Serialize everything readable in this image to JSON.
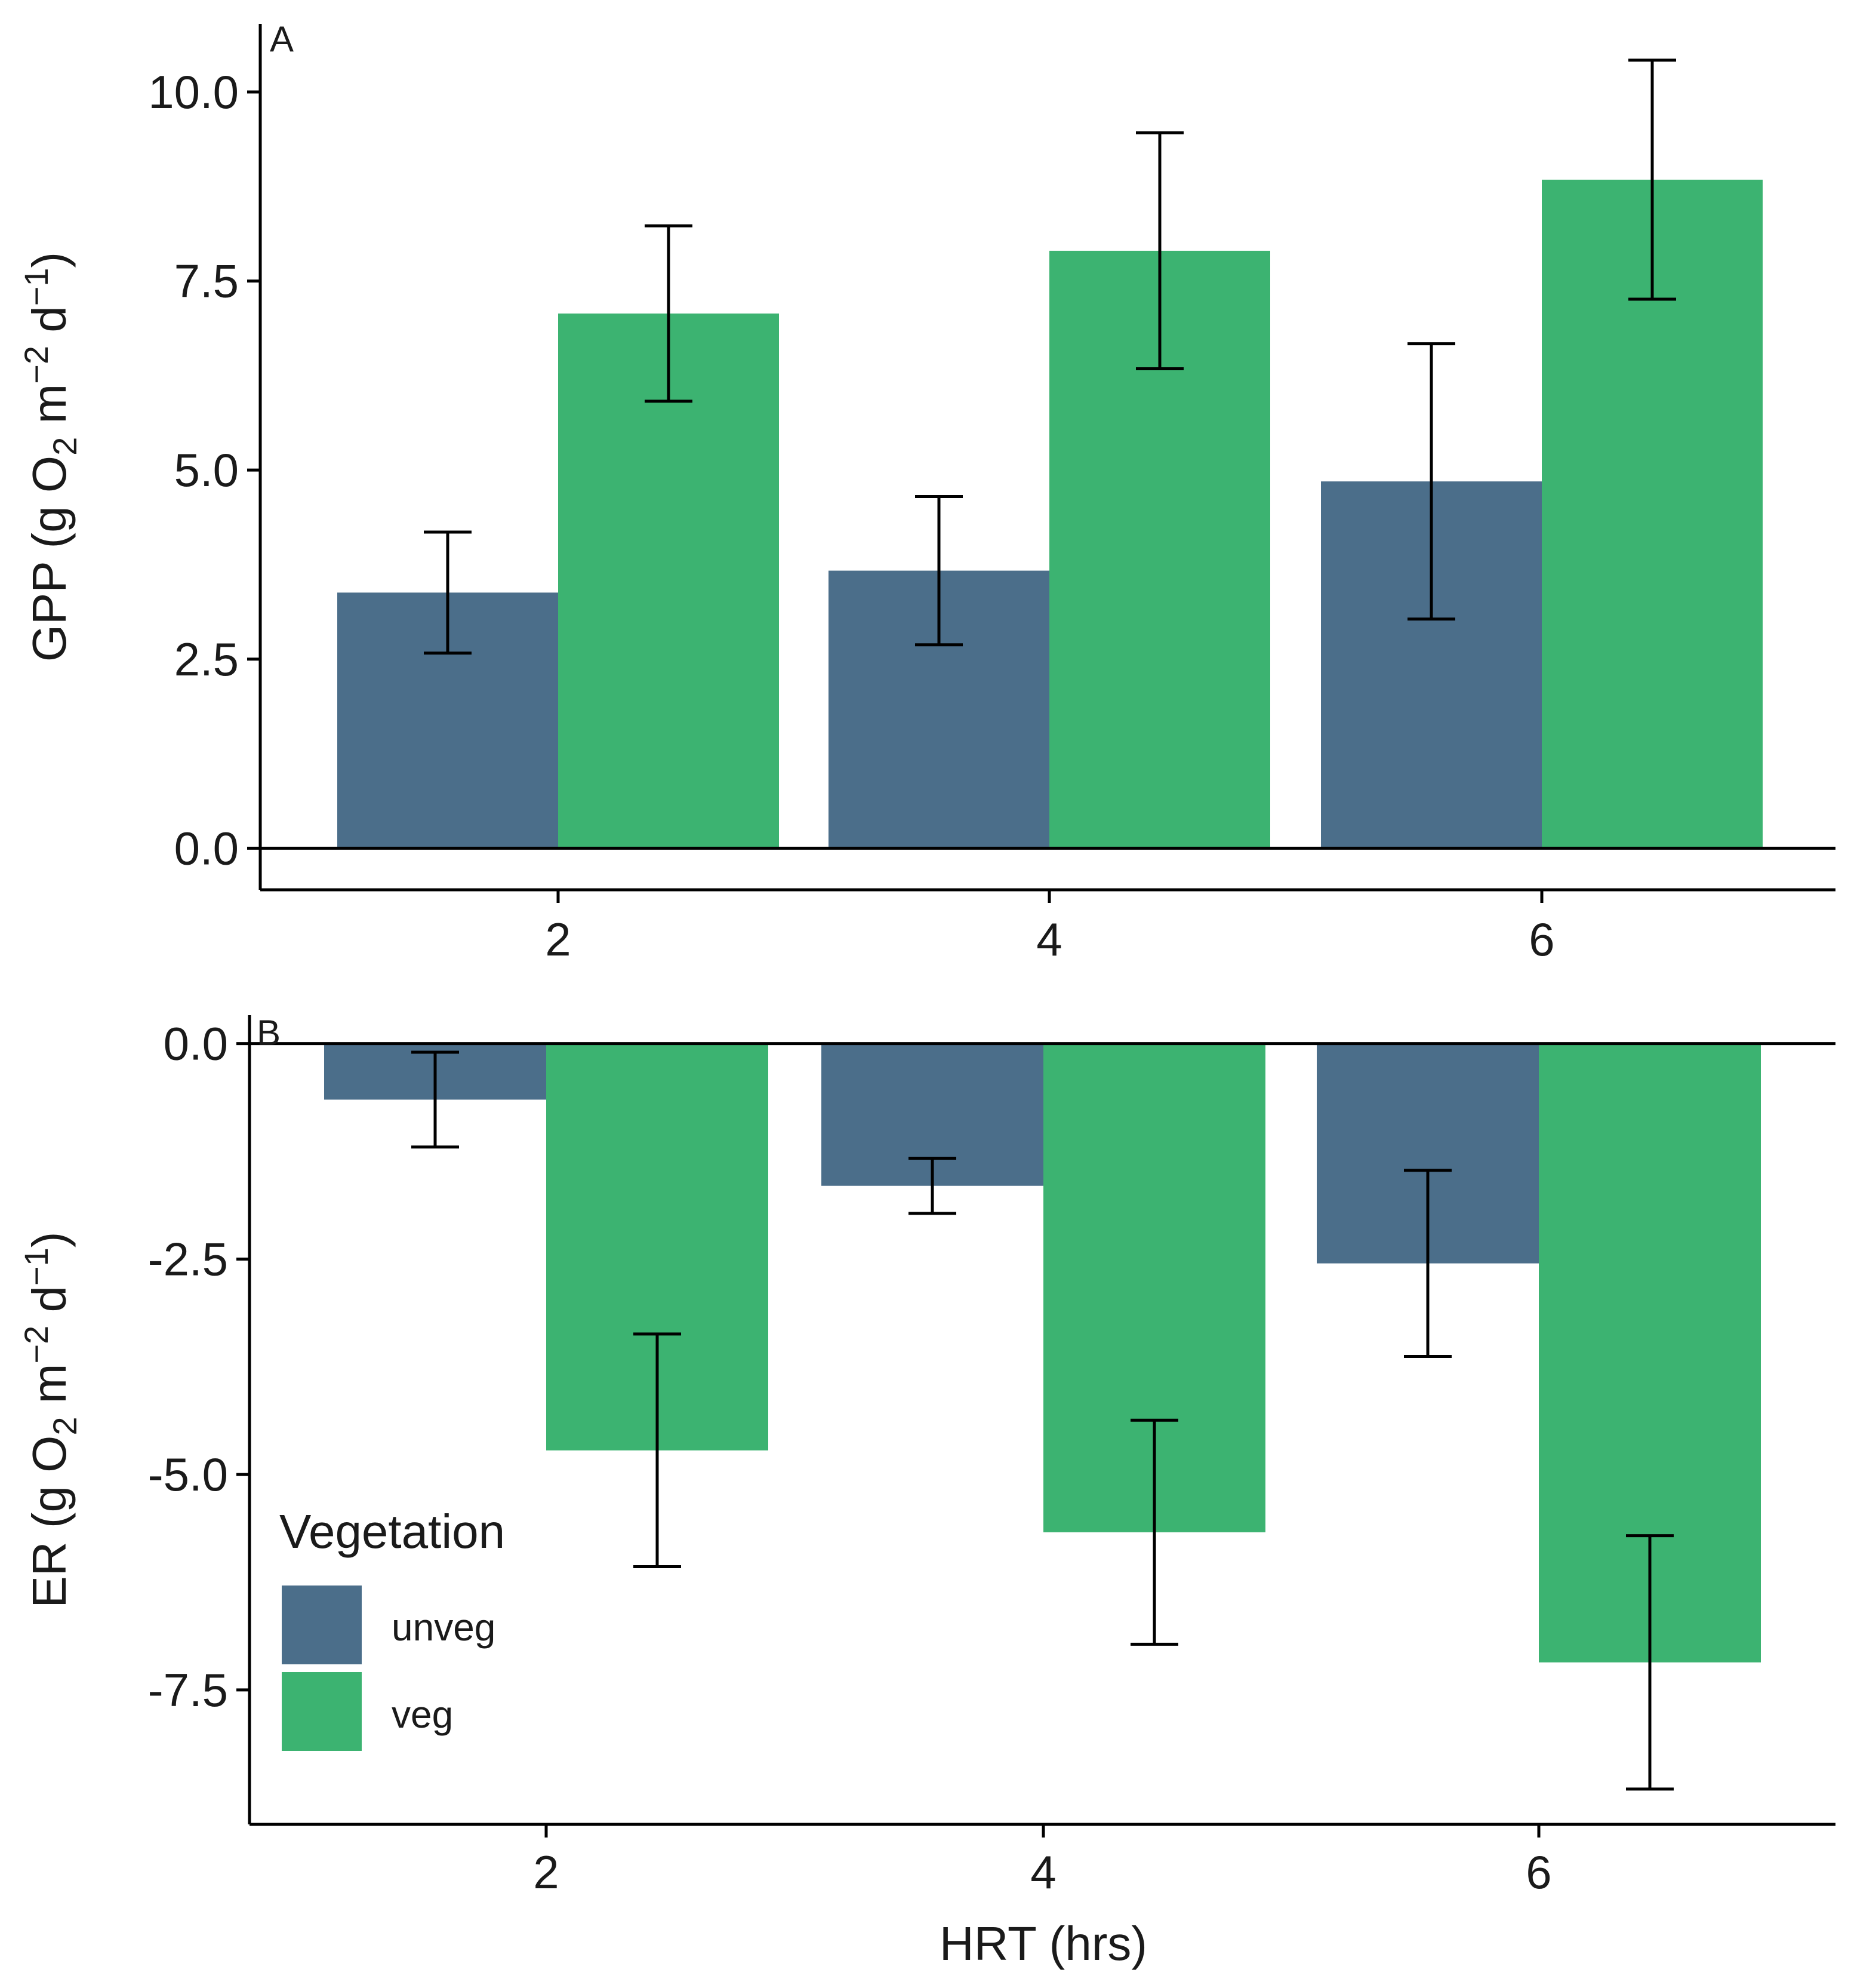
{
  "chart_data": [
    {
      "panel_tag": "A",
      "type": "bar",
      "categories": [
        "2",
        "4",
        "6"
      ],
      "series": [
        {
          "name": "unveg",
          "color": "#4b6e8a",
          "values": [
            3.38,
            3.67,
            4.85
          ],
          "errors": [
            0.8,
            0.98,
            1.82
          ]
        },
        {
          "name": "veg",
          "color": "#3cb371",
          "values": [
            7.07,
            7.9,
            8.84
          ],
          "errors": [
            1.16,
            1.56,
            1.58
          ]
        }
      ],
      "xlabel": "",
      "ylabel": "GPP (g O2 m-2 d-1)",
      "ylabel_parts": {
        "pre": "GPP (g O",
        "sub": "2",
        "mid": " m",
        "sup1": "−2",
        "mid2": " d",
        "sup2": "−1",
        "post": ")"
      },
      "ylim": [
        -0.55,
        10.9
      ],
      "yticks": [
        0.0,
        2.5,
        5.0,
        7.5,
        10.0
      ],
      "ytick_labels": [
        "0.0",
        "2.5",
        "5.0",
        "7.5",
        "10.0"
      ]
    },
    {
      "panel_tag": "B",
      "type": "bar",
      "categories": [
        "2",
        "4",
        "6"
      ],
      "series": [
        {
          "name": "unveg",
          "color": "#4b6e8a",
          "values": [
            -0.65,
            -1.65,
            -2.55
          ],
          "errors": [
            0.55,
            0.32,
            1.08
          ]
        },
        {
          "name": "veg",
          "color": "#3cb371",
          "values": [
            -4.72,
            -5.67,
            -7.18
          ],
          "errors": [
            1.35,
            1.3,
            1.47
          ]
        }
      ],
      "xlabel": "HRT (hrs)",
      "ylabel": "ER (g O2 m-2 d-1)",
      "ylabel_parts": {
        "pre": "ER (g O",
        "sub": "2",
        "mid": " m",
        "sup1": "−2",
        "mid2": " d",
        "sup2": "−1",
        "post": ")"
      },
      "ylim": [
        -9.06,
        0.33
      ],
      "yticks": [
        0.0,
        -2.5,
        -5.0,
        -7.5
      ],
      "ytick_labels": [
        "0.0",
        "-2.5",
        "-5.0",
        "-7.5"
      ]
    }
  ],
  "legend": {
    "title": "Vegetation",
    "items": [
      {
        "label": "unveg",
        "color": "#4b6e8a"
      },
      {
        "label": "veg",
        "color": "#3cb371"
      }
    ]
  }
}
